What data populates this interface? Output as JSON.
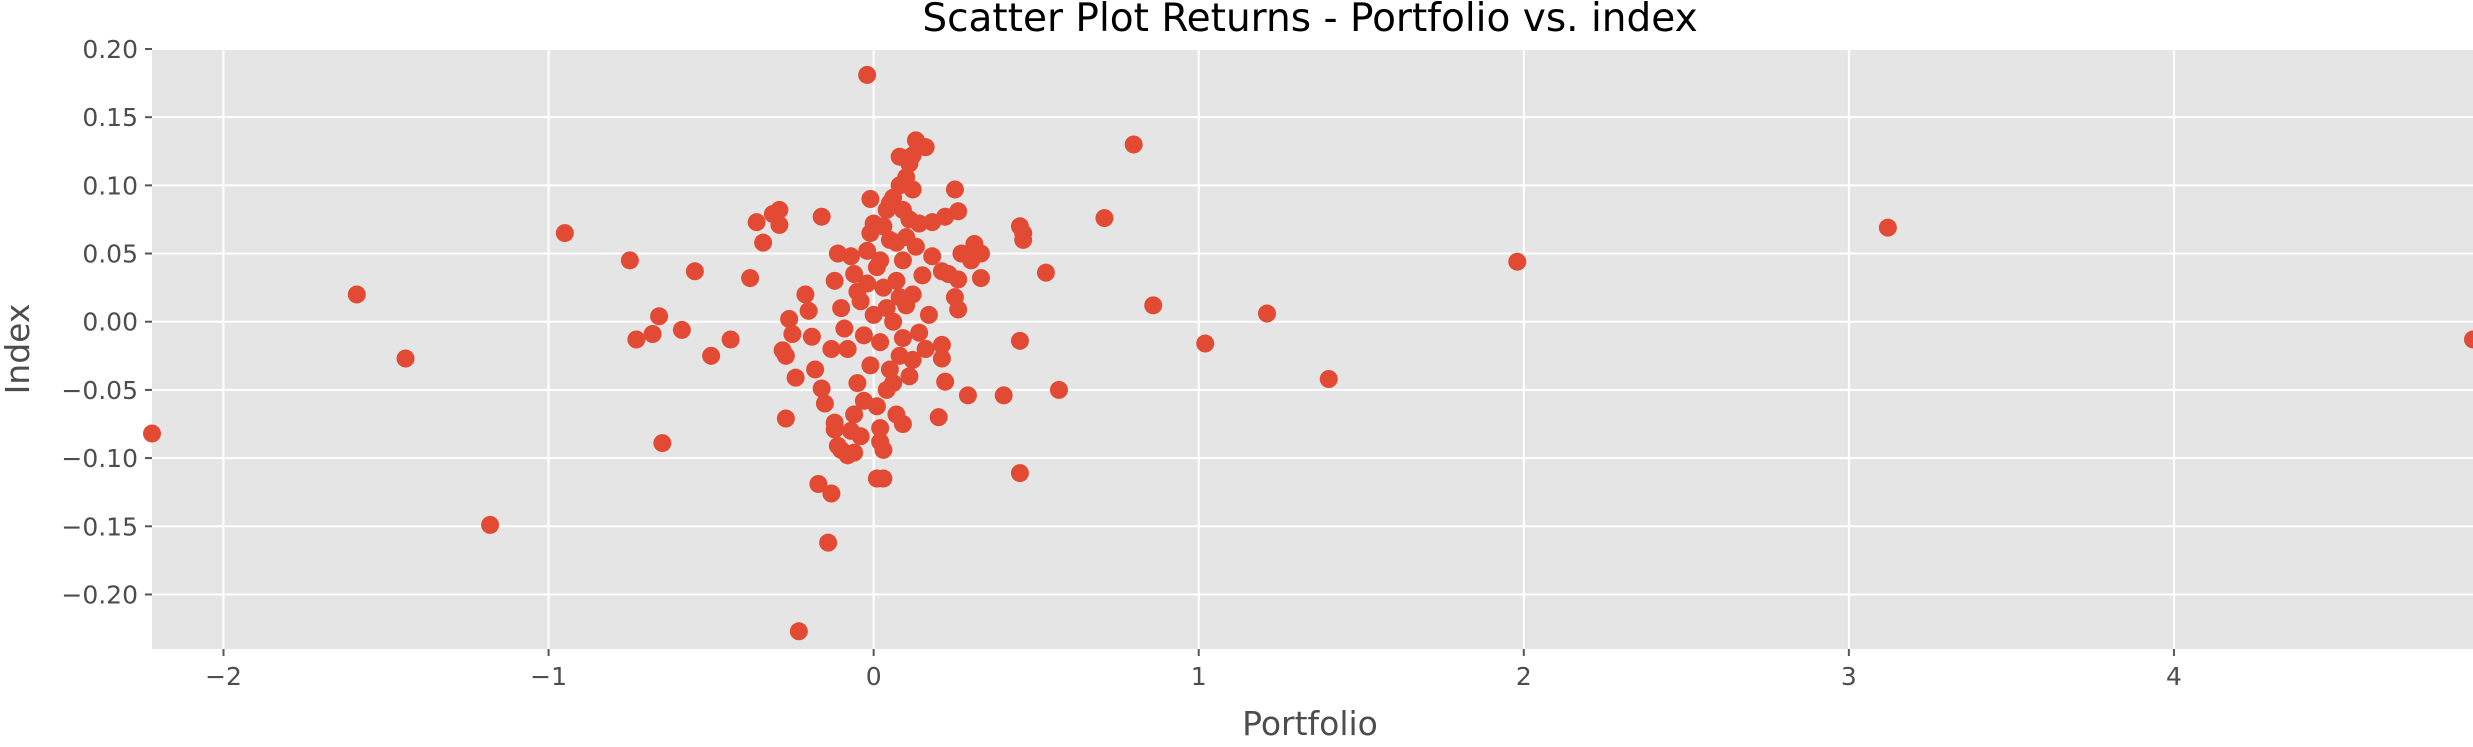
{
  "chart_data": {
    "type": "scatter",
    "title": "Scatter Plot Returns - Portfolio vs. index",
    "xlabel": "Portfolio",
    "ylabel": "Index",
    "xlim": [
      -2.22,
      4.92
    ],
    "ylim": [
      -0.24,
      0.2
    ],
    "xticks": [
      -2,
      -1,
      0,
      1,
      2,
      3,
      4
    ],
    "yticks": [
      -0.2,
      -0.15,
      -0.1,
      -0.05,
      0.0,
      0.05,
      0.1,
      0.15,
      0.2
    ],
    "xtick_labels": [
      "−2",
      "−1",
      "0",
      "1",
      "2",
      "3",
      "4"
    ],
    "ytick_labels": [
      "−0.20",
      "−0.15",
      "−0.10",
      "−0.05",
      "0.00",
      "0.05",
      "0.10",
      "0.15",
      "0.20"
    ],
    "grid": true,
    "style": "ggplot",
    "colors": {
      "points": "#E24A33",
      "plot_background": "#E5E5E5",
      "grid": "#FFFFFF",
      "tick_text": "#4D4D4D"
    },
    "series": [
      {
        "points": [
          [
            -2.22,
            -0.082
          ],
          [
            -1.59,
            0.02
          ],
          [
            -1.44,
            -0.027
          ],
          [
            -1.18,
            -0.149
          ],
          [
            -0.95,
            0.065
          ],
          [
            -0.75,
            0.045
          ],
          [
            -0.73,
            -0.013
          ],
          [
            -0.68,
            -0.009
          ],
          [
            -0.66,
            0.004
          ],
          [
            -0.65,
            -0.089
          ],
          [
            -0.59,
            -0.006
          ],
          [
            -0.55,
            0.037
          ],
          [
            -0.5,
            -0.025
          ],
          [
            -0.44,
            -0.013
          ],
          [
            -0.38,
            0.032
          ],
          [
            -0.36,
            0.073
          ],
          [
            -0.34,
            0.058
          ],
          [
            -0.31,
            0.079
          ],
          [
            -0.29,
            0.082
          ],
          [
            -0.29,
            0.071
          ],
          [
            -0.28,
            -0.021
          ],
          [
            -0.27,
            -0.071
          ],
          [
            -0.27,
            -0.025
          ],
          [
            -0.26,
            0.002
          ],
          [
            -0.25,
            -0.009
          ],
          [
            -0.24,
            -0.041
          ],
          [
            -0.23,
            -0.227
          ],
          [
            -0.21,
            0.02
          ],
          [
            -0.2,
            0.008
          ],
          [
            -0.19,
            -0.011
          ],
          [
            -0.18,
            -0.035
          ],
          [
            -0.17,
            -0.119
          ],
          [
            -0.16,
            -0.049
          ],
          [
            -0.16,
            0.077
          ],
          [
            -0.15,
            -0.06
          ],
          [
            -0.14,
            -0.162
          ],
          [
            -0.13,
            -0.126
          ],
          [
            -0.12,
            -0.074
          ],
          [
            -0.12,
            -0.079
          ],
          [
            -0.11,
            -0.091
          ],
          [
            -0.1,
            -0.094
          ],
          [
            -0.08,
            -0.098
          ],
          [
            -0.07,
            -0.08
          ],
          [
            -0.06,
            -0.096
          ],
          [
            -0.04,
            -0.084
          ],
          [
            -0.02,
            0.181
          ],
          [
            0.01,
            -0.115
          ],
          [
            0.03,
            -0.115
          ],
          [
            0.03,
            -0.094
          ],
          [
            0.07,
            -0.068
          ],
          [
            0.09,
            -0.075
          ],
          [
            0.1,
            0.106
          ],
          [
            0.12,
            0.122
          ],
          [
            0.14,
            0.129
          ],
          [
            0.16,
            0.128
          ],
          [
            0.13,
            0.133
          ],
          [
            0.08,
            0.121
          ],
          [
            0.11,
            0.116
          ],
          [
            0.12,
            0.097
          ],
          [
            0.05,
            0.087
          ],
          [
            -0.01,
            0.09
          ],
          [
            0.09,
            0.082
          ],
          [
            0.14,
            0.072
          ],
          [
            0.18,
            0.073
          ],
          [
            0.22,
            0.077
          ],
          [
            0.25,
            0.097
          ],
          [
            0.26,
            0.081
          ],
          [
            0.27,
            0.05
          ],
          [
            0.3,
            0.045
          ],
          [
            0.31,
            0.057
          ],
          [
            0.33,
            0.05
          ],
          [
            0.33,
            0.032
          ],
          [
            0.26,
            0.031
          ],
          [
            0.25,
            0.018
          ],
          [
            0.26,
            0.009
          ],
          [
            0.23,
            0.035
          ],
          [
            0.21,
            0.037
          ],
          [
            0.21,
            -0.017
          ],
          [
            0.21,
            -0.027
          ],
          [
            0.22,
            -0.044
          ],
          [
            0.2,
            -0.07
          ],
          [
            0.29,
            -0.054
          ],
          [
            0.4,
            -0.054
          ],
          [
            0.45,
            0.07
          ],
          [
            0.46,
            0.065
          ],
          [
            0.46,
            0.06
          ],
          [
            0.45,
            -0.014
          ],
          [
            0.45,
            -0.111
          ],
          [
            0.53,
            0.036
          ],
          [
            0.57,
            -0.05
          ],
          [
            0.71,
            0.076
          ],
          [
            0.8,
            0.13
          ],
          [
            0.86,
            0.012
          ],
          [
            1.02,
            -0.016
          ],
          [
            1.21,
            0.006
          ],
          [
            1.4,
            -0.042
          ],
          [
            1.98,
            0.044
          ],
          [
            3.12,
            0.069
          ],
          [
            4.92,
            -0.013
          ],
          [
            -0.1,
            0.01
          ],
          [
            -0.08,
            -0.02
          ],
          [
            -0.06,
            0.035
          ],
          [
            -0.05,
            -0.045
          ],
          [
            -0.04,
            0.015
          ],
          [
            -0.03,
            -0.01
          ],
          [
            -0.02,
            0.052
          ],
          [
            -0.01,
            -0.032
          ],
          [
            0.0,
            0.005
          ],
          [
            0.01,
            0.04
          ],
          [
            0.02,
            -0.015
          ],
          [
            0.03,
            0.025
          ],
          [
            0.04,
            -0.05
          ],
          [
            0.05,
            0.06
          ],
          [
            0.06,
            0.0
          ],
          [
            0.07,
            0.03
          ],
          [
            0.08,
            -0.025
          ],
          [
            0.09,
            0.045
          ],
          [
            0.1,
            0.012
          ],
          [
            0.11,
            -0.04
          ],
          [
            0.12,
            0.02
          ],
          [
            0.13,
            0.055
          ],
          [
            0.14,
            -0.008
          ],
          [
            0.15,
            0.034
          ],
          [
            0.16,
            -0.02
          ],
          [
            -0.07,
            0.048
          ],
          [
            -0.05,
            0.022
          ],
          [
            -0.03,
            -0.058
          ],
          [
            -0.01,
            0.065
          ],
          [
            0.01,
            -0.062
          ],
          [
            0.03,
            0.07
          ],
          [
            0.05,
            -0.035
          ],
          [
            0.07,
            0.058
          ],
          [
            0.09,
            -0.012
          ],
          [
            0.11,
            0.075
          ],
          [
            -0.09,
            -0.005
          ],
          [
            -0.06,
            -0.068
          ],
          [
            -0.02,
            0.028
          ],
          [
            0.02,
            0.045
          ],
          [
            0.04,
            0.01
          ],
          [
            0.06,
            -0.045
          ],
          [
            0.08,
            0.018
          ],
          [
            0.1,
            0.062
          ],
          [
            0.12,
            -0.028
          ],
          [
            0.02,
            -0.078
          ],
          [
            -0.12,
            0.03
          ],
          [
            -0.11,
            0.05
          ],
          [
            -0.13,
            -0.02
          ],
          [
            0.17,
            0.005
          ],
          [
            0.18,
            0.048
          ],
          [
            0.0,
            0.072
          ],
          [
            0.04,
            0.082
          ],
          [
            0.06,
            0.091
          ],
          [
            0.08,
            0.1
          ],
          [
            0.02,
            -0.088
          ]
        ]
      }
    ]
  }
}
